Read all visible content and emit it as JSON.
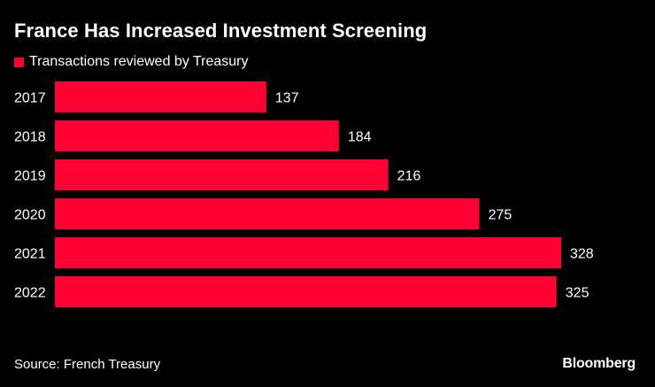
{
  "chart_data": {
    "type": "bar",
    "orientation": "horizontal",
    "title": "France Has Increased Investment Screening",
    "legend": "Transactions reviewed by Treasury",
    "categories": [
      "2017",
      "2018",
      "2019",
      "2020",
      "2021",
      "2022"
    ],
    "series": [
      {
        "name": "Transactions reviewed by Treasury",
        "values": [
          137,
          184,
          216,
          275,
          328,
          325
        ]
      }
    ],
    "xlim": [
      0,
      328
    ],
    "grid": false
  },
  "footer": {
    "source": "Source: French Treasury",
    "brand": "Bloomberg"
  },
  "colors": {
    "bar": "#ff0033",
    "background": "#000000",
    "text": "#ffffff"
  }
}
